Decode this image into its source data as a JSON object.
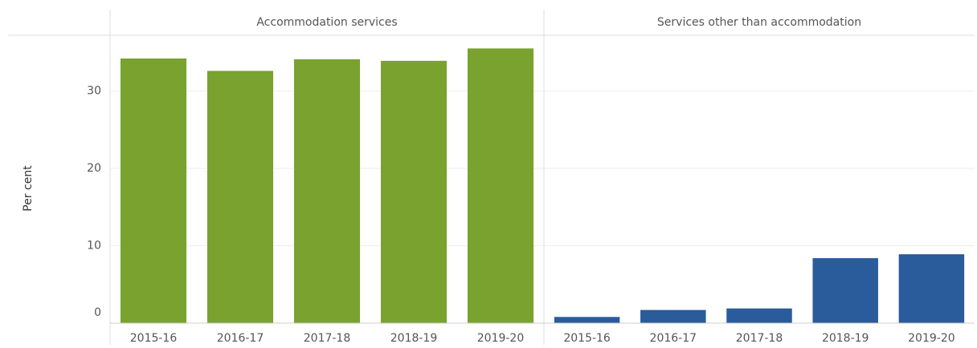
{
  "chart_data": [
    {
      "type": "bar",
      "title": "Accommodation services",
      "ylabel": "Per cent",
      "categories": [
        "2015-16",
        "2016-17",
        "2017-18",
        "2018-19",
        "2019-20"
      ],
      "values": [
        34.2,
        32.6,
        34.1,
        33.9,
        35.5
      ],
      "color": "#79a22f",
      "ylim": [
        0,
        37.2
      ],
      "yticks": [
        0,
        10,
        20,
        30
      ],
      "grid": true
    },
    {
      "type": "bar",
      "title": "Services other than accommodation",
      "categories": [
        "2015-16",
        "2016-17",
        "2017-18",
        "2018-19",
        "2019-20"
      ],
      "values": [
        0.8,
        1.7,
        1.9,
        8.4,
        8.9
      ],
      "color": "#2a5b9a",
      "ylim": [
        0,
        37.2
      ],
      "yticks": [
        0,
        10,
        20,
        30
      ],
      "grid": true
    }
  ]
}
